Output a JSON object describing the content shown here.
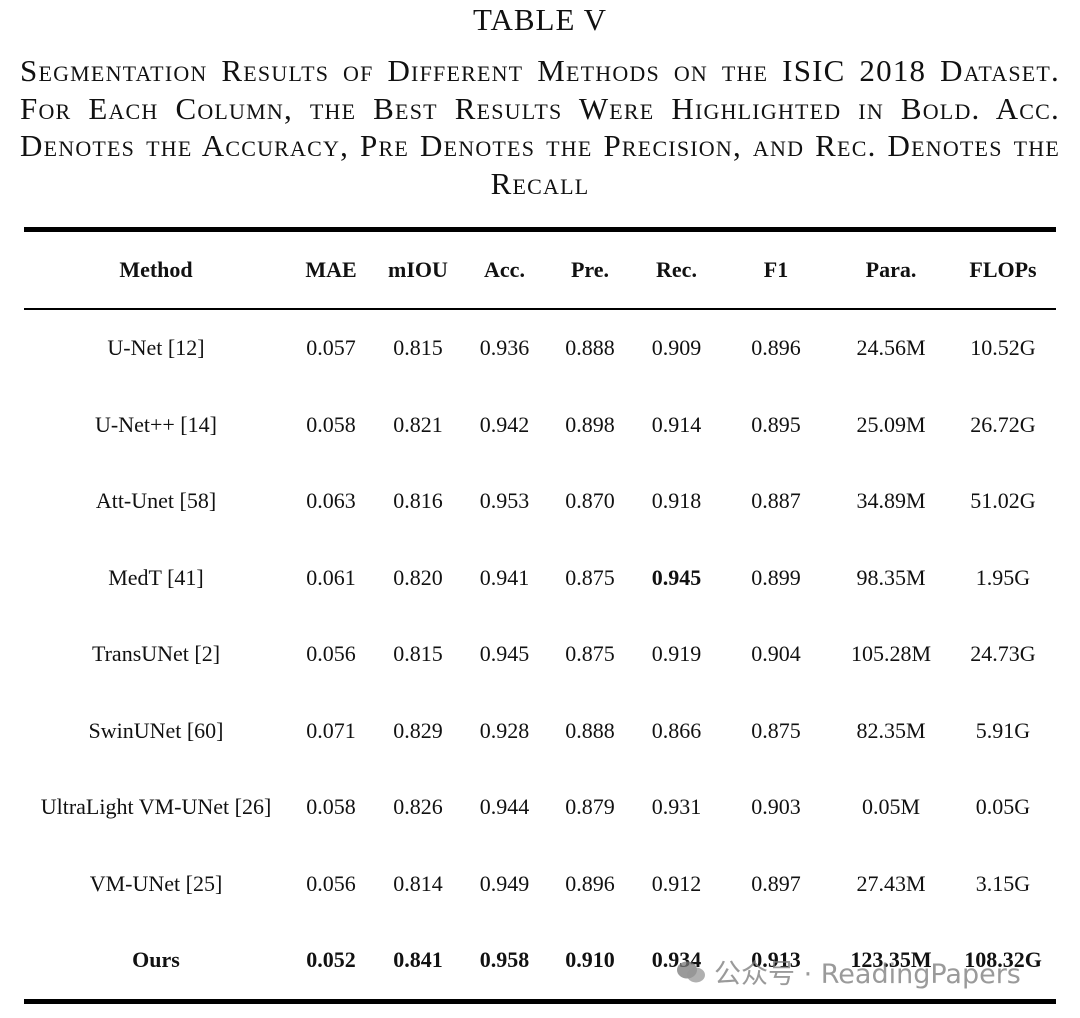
{
  "header": {
    "title": "TABLE V",
    "caption": "Segmentation Results of Different Methods on the ISIC 2018 Dataset. For Each Column, the Best Results Were Highlighted in Bold. Acc. Denotes the Accuracy, Pre Denotes the Precision, and Rec. Denotes the Recall"
  },
  "table": {
    "columns": [
      "Method",
      "MAE",
      "mIOU",
      "Acc.",
      "Pre.",
      "Rec.",
      "F1",
      "Para.",
      "FLOPs"
    ],
    "rows": [
      [
        "U-Net [12]",
        "0.057",
        "0.815",
        "0.936",
        "0.888",
        "0.909",
        "0.896",
        "24.56M",
        "10.52G"
      ],
      [
        "U-Net++ [14]",
        "0.058",
        "0.821",
        "0.942",
        "0.898",
        "0.914",
        "0.895",
        "25.09M",
        "26.72G"
      ],
      [
        "Att-Unet [58]",
        "0.063",
        "0.816",
        "0.953",
        "0.870",
        "0.918",
        "0.887",
        "34.89M",
        "51.02G"
      ],
      [
        "MedT [41]",
        "0.061",
        "0.820",
        "0.941",
        "0.875",
        "0.945",
        "0.899",
        "98.35M",
        "1.95G"
      ],
      [
        "TransUNet [2]",
        "0.056",
        "0.815",
        "0.945",
        "0.875",
        "0.919",
        "0.904",
        "105.28M",
        "24.73G"
      ],
      [
        "SwinUNet [60]",
        "0.071",
        "0.829",
        "0.928",
        "0.888",
        "0.866",
        "0.875",
        "82.35M",
        "5.91G"
      ],
      [
        "UltraLight VM-UNet [26]",
        "0.058",
        "0.826",
        "0.944",
        "0.879",
        "0.931",
        "0.903",
        "0.05M",
        "0.05G"
      ],
      [
        "VM-UNet [25]",
        "0.056",
        "0.814",
        "0.949",
        "0.896",
        "0.912",
        "0.897",
        "27.43M",
        "3.15G"
      ],
      [
        "Ours",
        "0.052",
        "0.841",
        "0.958",
        "0.910",
        "0.934",
        "0.913",
        "123.35M",
        "108.32G"
      ]
    ]
  },
  "watermark": "公众号 · ReadingPapers"
}
